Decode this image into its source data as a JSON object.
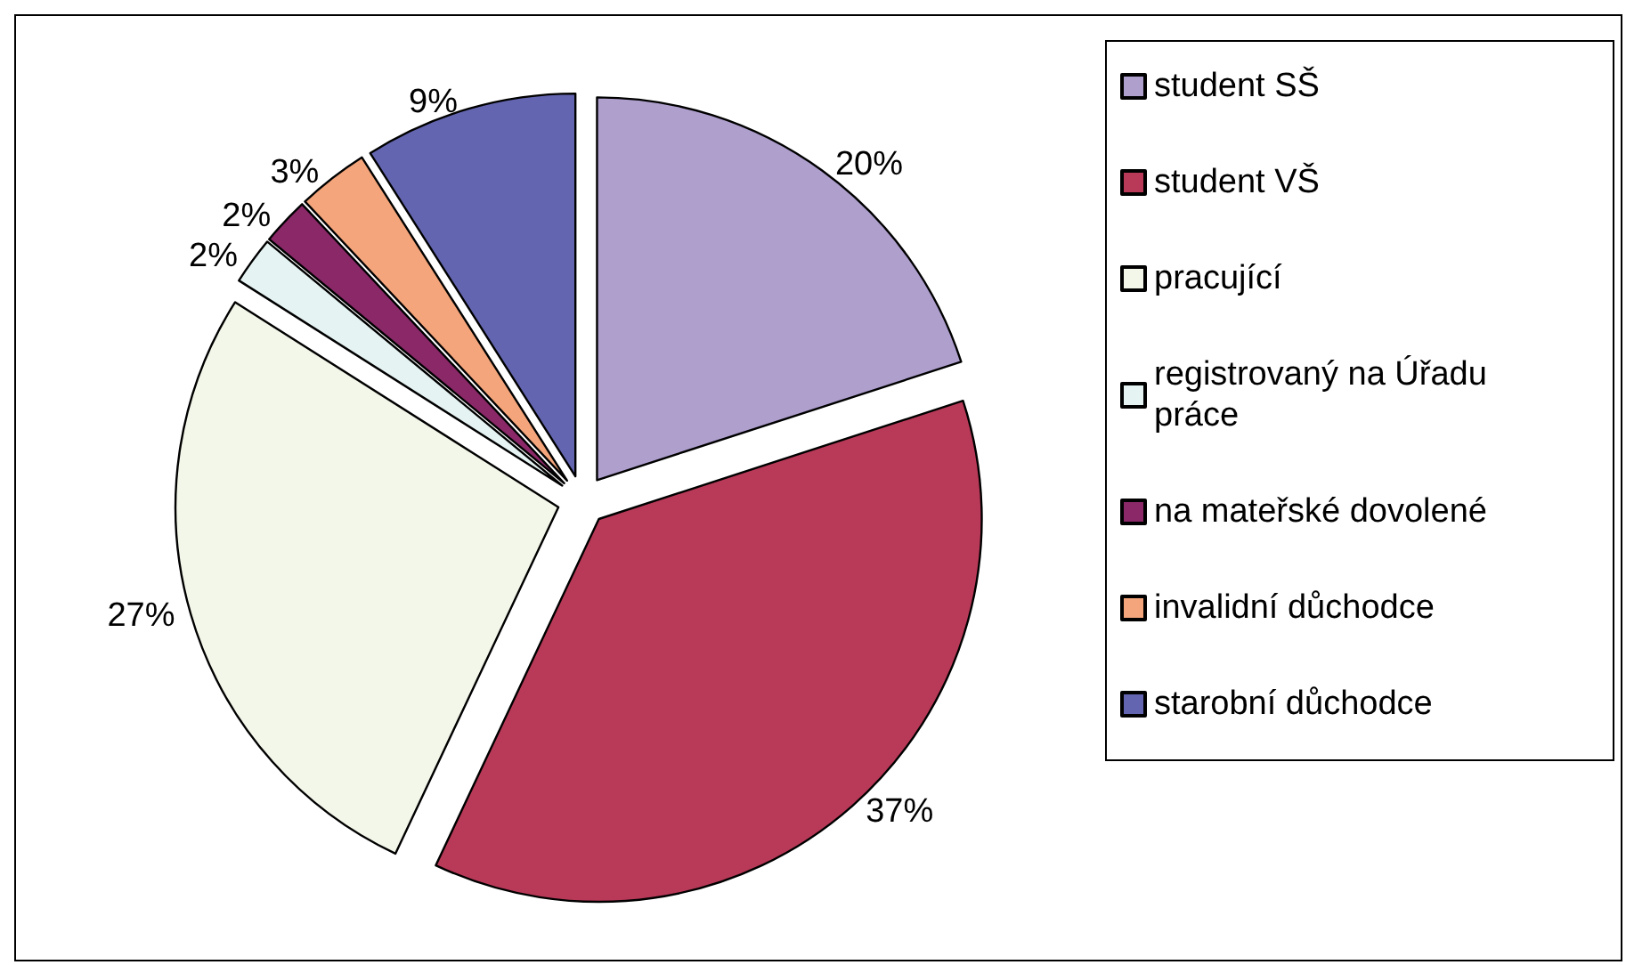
{
  "chart_data": {
    "type": "pie",
    "categories": [
      "student SŠ",
      "student VŠ",
      "pracující",
      "registrovaný na Úřadu práce",
      "na mateřské dovolené",
      "invalidní důchodce",
      "starobní důchodce"
    ],
    "values": [
      20,
      37,
      27,
      2,
      2,
      3,
      9
    ],
    "colors": [
      "#ae9fcd",
      "#b83a58",
      "#f3f7e9",
      "#e6f3f3",
      "#8a2868",
      "#f4a57b",
      "#6365b0"
    ],
    "value_labels": [
      "20%",
      "37%",
      "27%",
      "2%",
      "2%",
      "3%",
      "9%"
    ],
    "legend": "right"
  }
}
